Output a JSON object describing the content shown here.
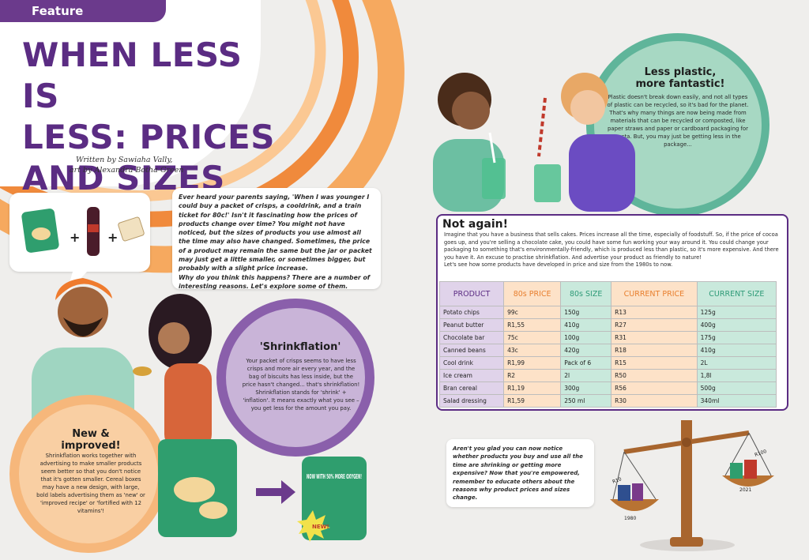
{
  "header": {
    "section_label": "Feature",
    "title_lines": [
      "WHEN LESS IS",
      "LESS: PRICES",
      "AND SIZES"
    ],
    "byline_line1": "Written by Sawiaha Vally,",
    "byline_line2": "art by Alexandra Botha-Green"
  },
  "intro": {
    "paragraph1": "Ever heard your parents saying, 'When I was younger I could buy a packet of crisps, a cooldrink, and a train ticket for 80c!' Isn't it fascinating how the prices of products change over time? You might not have noticed, but the sizes of products you use almost all the time may also have changed. Sometimes, the price of a product may remain the same but the jar or packet may just get a little smaller, or sometimes bigger, but probably with a slight price increase.",
    "paragraph2": "Why do you think this happens? There are a number of interesting reasons. Let's explore some of them."
  },
  "illustration": {
    "bag_text": "NOW WITH 50% MORE OXYGEN!",
    "burst_text": "NEW!",
    "scale_left_label": "R10",
    "scale_left_year": "1980",
    "scale_right_label": "R100",
    "scale_right_year": "2021"
  },
  "shrinkflation": {
    "title": "'Shrinkflation'",
    "body": "Your packet of crisps seems to have less crisps and more air every year, and the bag of biscuits has less inside, but the price hasn't changed... that's shrinkflation! Shrinkflation stands for 'shrink' + 'inflation'. It means exactly what you see – you get less for the amount you pay."
  },
  "new_improved": {
    "title_line1": "New &",
    "title_line2": "improved!",
    "body": "Shrinkflation works together with advertising to make smaller products seem better so that you don't notice that it's gotten smaller. Cereal boxes may have a new design, with large, bold labels advertising them as 'new' or 'improved recipe' or 'fortified with 12 vitamins'!"
  },
  "plastic": {
    "title_line1": "Less plastic,",
    "title_line2": "more fantastic!",
    "body": "Plastic doesn't break down easily, and not all types of plastic can be recycled, so it's bad for the planet. That's why many things are now being made from materials that can be recycled or composted, like paper straws and paper or cardboard packaging for pasta. But, you may just be getting less in the package..."
  },
  "not_again": {
    "title": "Not again!",
    "body": "Imagine that you have a business that sells cakes. Prices increase all the time, especially of foodstuff. So, if the price of cocoa goes up, and you're selling a chocolate cake, you could have some fun working your way around it. You could change your packaging to something that's environmentally-friendly, which is produced less than plastic, so it's more expensive. And there you have it. An excuse to practise shrinkflation. And advertise your product as friendly to nature!",
    "table_intro": "Let's see how some products have developed in price and size from the 1980s to now.",
    "headers": [
      "PRODUCT",
      "80s PRICE",
      "80s SIZE",
      "CURRENT PRICE",
      "CURRENT SIZE"
    ],
    "rows": [
      [
        "Potato chips",
        "99c",
        "150g",
        "R13",
        "125g"
      ],
      [
        "Peanut butter",
        "R1,55",
        "410g",
        "R27",
        "400g"
      ],
      [
        "Chocolate bar",
        "75c",
        "100g",
        "R31",
        "175g"
      ],
      [
        "Canned beans",
        "43c",
        "420g",
        "R18",
        "410g"
      ],
      [
        "Cool drink",
        "R1,99",
        "Pack of 6",
        "R15",
        "2L"
      ],
      [
        "Ice cream",
        "R2",
        "2l",
        "R50",
        "1,8l"
      ],
      [
        "Bran cereal",
        "R1,19",
        "300g",
        "R56",
        "500g"
      ],
      [
        "Salad dressing",
        "R1,59",
        "250 ml",
        "R30",
        "340ml"
      ]
    ]
  },
  "closing": {
    "body": "Aren't you glad you can now notice whether products you buy and use all the time are shrinking or getting more expensive? Now that you're empowered, remember to educate others about the reasons why product prices and sizes change."
  },
  "colors": {
    "purple": "#5b2c83",
    "orange": "#f08a3c",
    "green": "#5fb59a",
    "background": "#efeeec"
  }
}
